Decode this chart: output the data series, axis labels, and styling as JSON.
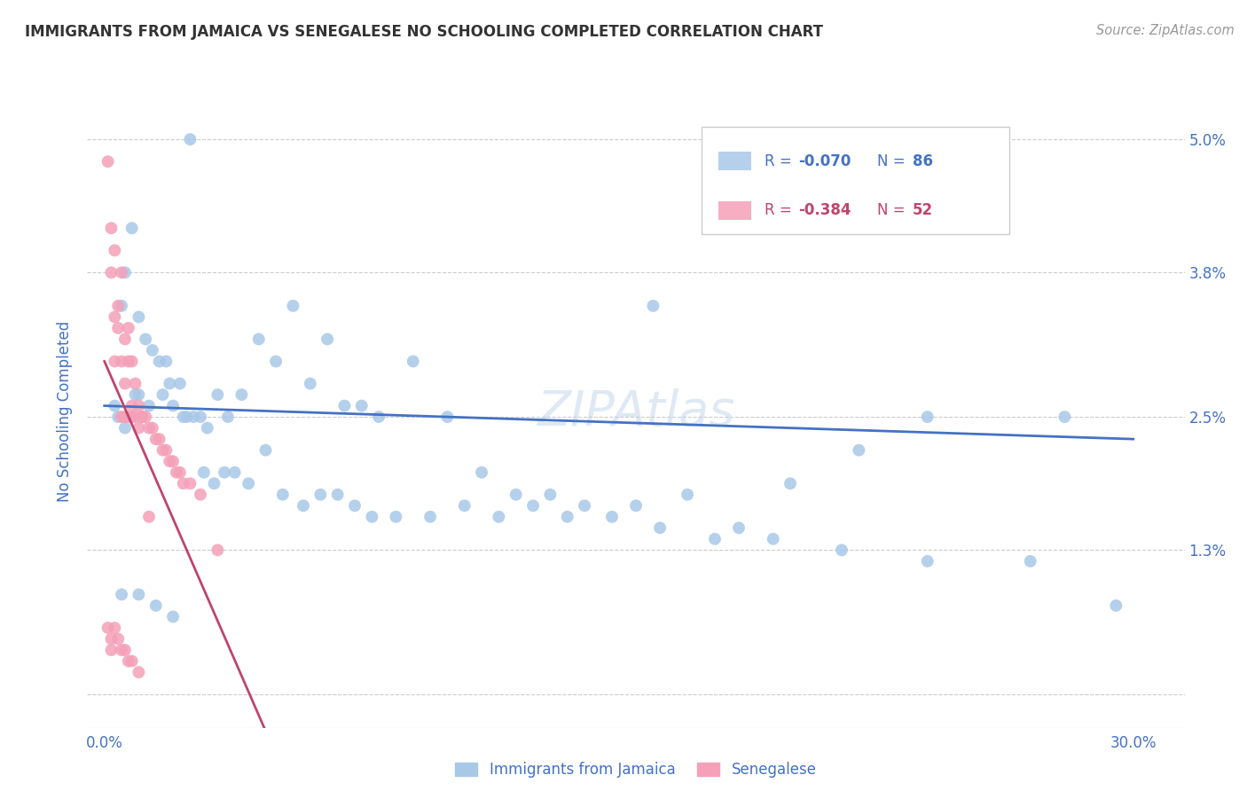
{
  "title": "IMMIGRANTS FROM JAMAICA VS SENEGALESE NO SCHOOLING COMPLETED CORRELATION CHART",
  "source": "Source: ZipAtlas.com",
  "ylabel": "No Schooling Completed",
  "x_ticks": [
    0.0,
    0.05,
    0.1,
    0.15,
    0.2,
    0.25,
    0.3
  ],
  "x_tick_labels": [
    "0.0%",
    "",
    "",
    "",
    "",
    "",
    "30.0%"
  ],
  "y_ticks": [
    0.0,
    0.013,
    0.025,
    0.038,
    0.05
  ],
  "y_tick_labels_right": [
    "",
    "1.3%",
    "2.5%",
    "3.8%",
    "5.0%"
  ],
  "xlim": [
    -0.005,
    0.315
  ],
  "ylim": [
    -0.003,
    0.054
  ],
  "blue_color": "#a8c8e8",
  "pink_color": "#f4a0b8",
  "blue_line_color": "#4472c4",
  "pink_line_color": "#c0446c",
  "title_color": "#333333",
  "source_color": "#999999",
  "axis_label_color": "#4472c4",
  "tick_color": "#4472c4",
  "grid_color": "#cccccc",
  "background_color": "#ffffff",
  "blue_scatter_x": [
    0.025,
    0.006,
    0.01,
    0.012,
    0.018,
    0.005,
    0.009,
    0.014,
    0.019,
    0.024,
    0.028,
    0.033,
    0.04,
    0.05,
    0.06,
    0.07,
    0.08,
    0.1,
    0.12,
    0.14,
    0.17,
    0.2,
    0.22,
    0.003,
    0.006,
    0.01,
    0.015,
    0.02,
    0.026,
    0.032,
    0.038,
    0.047,
    0.058,
    0.068,
    0.078,
    0.095,
    0.115,
    0.135,
    0.162,
    0.195,
    0.24,
    0.27,
    0.005,
    0.01,
    0.02,
    0.008,
    0.016,
    0.022,
    0.03,
    0.036,
    0.045,
    0.055,
    0.065,
    0.075,
    0.09,
    0.11,
    0.13,
    0.155,
    0.185,
    0.215,
    0.16,
    0.28,
    0.295,
    0.004,
    0.013,
    0.017,
    0.023,
    0.029,
    0.035,
    0.042,
    0.052,
    0.063,
    0.073,
    0.085,
    0.105,
    0.125,
    0.148,
    0.178,
    0.24
  ],
  "blue_scatter_y": [
    0.05,
    0.038,
    0.034,
    0.032,
    0.03,
    0.035,
    0.027,
    0.031,
    0.028,
    0.025,
    0.025,
    0.027,
    0.027,
    0.03,
    0.028,
    0.026,
    0.025,
    0.025,
    0.018,
    0.017,
    0.018,
    0.019,
    0.022,
    0.026,
    0.024,
    0.027,
    0.008,
    0.026,
    0.025,
    0.019,
    0.02,
    0.022,
    0.017,
    0.018,
    0.016,
    0.016,
    0.016,
    0.016,
    0.015,
    0.014,
    0.012,
    0.012,
    0.009,
    0.009,
    0.007,
    0.042,
    0.03,
    0.028,
    0.024,
    0.025,
    0.032,
    0.035,
    0.032,
    0.026,
    0.03,
    0.02,
    0.018,
    0.017,
    0.015,
    0.013,
    0.035,
    0.025,
    0.008,
    0.025,
    0.026,
    0.027,
    0.025,
    0.02,
    0.02,
    0.019,
    0.018,
    0.018,
    0.017,
    0.016,
    0.017,
    0.017,
    0.016,
    0.014,
    0.025
  ],
  "pink_scatter_x": [
    0.001,
    0.002,
    0.002,
    0.003,
    0.003,
    0.003,
    0.004,
    0.004,
    0.005,
    0.005,
    0.005,
    0.006,
    0.006,
    0.006,
    0.007,
    0.007,
    0.007,
    0.008,
    0.008,
    0.008,
    0.009,
    0.009,
    0.01,
    0.01,
    0.011,
    0.011,
    0.012,
    0.013,
    0.014,
    0.015,
    0.016,
    0.017,
    0.018,
    0.019,
    0.02,
    0.021,
    0.022,
    0.023,
    0.025,
    0.028,
    0.001,
    0.002,
    0.002,
    0.003,
    0.004,
    0.005,
    0.006,
    0.007,
    0.008,
    0.01,
    0.013,
    0.033
  ],
  "pink_scatter_y": [
    0.048,
    0.042,
    0.038,
    0.04,
    0.034,
    0.03,
    0.035,
    0.033,
    0.038,
    0.03,
    0.025,
    0.032,
    0.028,
    0.025,
    0.033,
    0.03,
    0.025,
    0.03,
    0.026,
    0.025,
    0.028,
    0.025,
    0.026,
    0.024,
    0.025,
    0.025,
    0.025,
    0.024,
    0.024,
    0.023,
    0.023,
    0.022,
    0.022,
    0.021,
    0.021,
    0.02,
    0.02,
    0.019,
    0.019,
    0.018,
    0.006,
    0.005,
    0.004,
    0.006,
    0.005,
    0.004,
    0.004,
    0.003,
    0.003,
    0.002,
    0.016,
    0.013
  ],
  "blue_trend_x": [
    0.0,
    0.3
  ],
  "blue_trend_y": [
    0.026,
    0.023
  ],
  "pink_trend_x": [
    0.0,
    0.048
  ],
  "pink_trend_y": [
    0.03,
    -0.004
  ]
}
